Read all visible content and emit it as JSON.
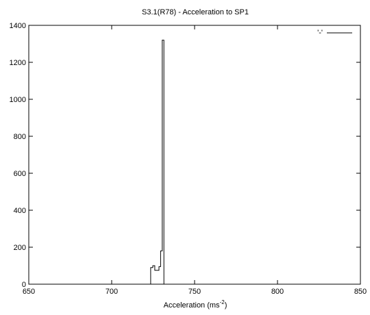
{
  "chart_data": {
    "type": "line",
    "step": true,
    "title": "S3.1(R78) - Acceleration to SP1",
    "xlabel_main": "Acceleration (ms",
    "xlabel_sup": "-2",
    "xlabel_end": ")",
    "ylabel": "",
    "xlim": [
      650,
      850
    ],
    "ylim": [
      0,
      1400
    ],
    "x_ticks": [
      650,
      700,
      750,
      800,
      850
    ],
    "y_ticks": [
      0,
      200,
      400,
      600,
      800,
      1000,
      1200,
      1400
    ],
    "grid": false,
    "legend_position": "top-right",
    "series": [
      {
        "name": "'-'",
        "x": [
          650,
          723.5,
          723.5,
          724.8,
          724.8,
          726.0,
          726.0,
          728.5,
          728.5,
          729.5,
          729.5,
          730.5,
          730.5,
          731.5,
          731.5,
          850
        ],
        "y": [
          0,
          0,
          90,
          90,
          100,
          100,
          75,
          75,
          95,
          95,
          180,
          180,
          1320,
          1320,
          0,
          0
        ]
      }
    ]
  }
}
